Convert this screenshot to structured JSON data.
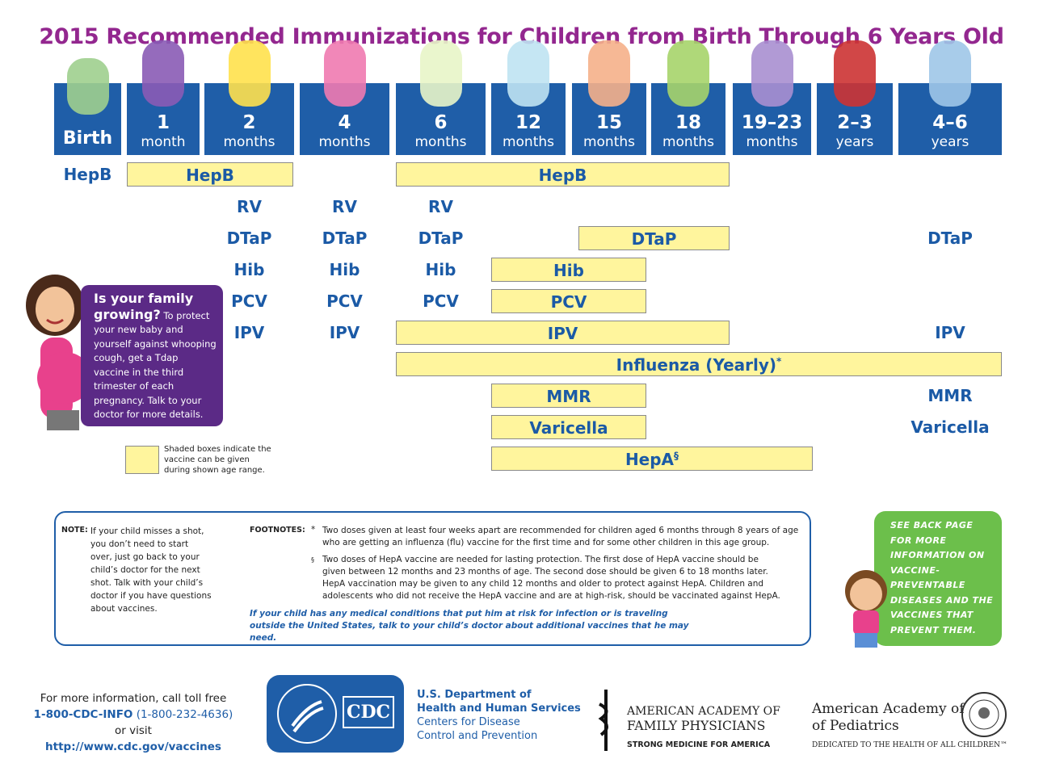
{
  "header": {
    "title": "2015 Recommended Immunizations for Children from Birth Through 6 Years Old"
  },
  "ages": [
    {
      "number": "Birth"
    },
    {
      "number": "1",
      "unit": "month"
    },
    {
      "number": "2",
      "unit": "months"
    },
    {
      "number": "4",
      "unit": "months"
    },
    {
      "number": "6",
      "unit": "months"
    },
    {
      "number": "12",
      "unit": "months"
    },
    {
      "number": "15",
      "unit": "months"
    },
    {
      "number": "18",
      "unit": "months"
    },
    {
      "number": "19–23",
      "unit": "months"
    },
    {
      "number": "2–3",
      "unit": "years"
    },
    {
      "number": "4–6",
      "unit": "years"
    }
  ],
  "rows": [
    {
      "cells": [
        {
          "text": "HepB"
        },
        {
          "text": "HepB"
        },
        {
          "text": "HepB"
        }
      ]
    },
    {
      "cells": [
        {
          "text": "RV"
        },
        {
          "text": "RV"
        },
        {
          "text": "RV"
        }
      ]
    },
    {
      "cells": [
        {
          "text": "DTaP"
        },
        {
          "text": "DTaP"
        },
        {
          "text": "DTaP"
        },
        {
          "text": "DTaP"
        },
        {
          "text": "DTaP"
        }
      ]
    },
    {
      "cells": [
        {
          "text": "Hib"
        },
        {
          "text": "Hib"
        },
        {
          "text": "Hib"
        },
        {
          "text": "Hib"
        }
      ]
    },
    {
      "cells": [
        {
          "text": "PCV"
        },
        {
          "text": "PCV"
        },
        {
          "text": "PCV"
        },
        {
          "text": "PCV"
        }
      ]
    },
    {
      "cells": [
        {
          "text": "IPV"
        },
        {
          "text": "IPV"
        },
        {
          "text": "IPV"
        },
        {
          "text": "IPV"
        }
      ]
    },
    {
      "cells": [
        {
          "text": "Influenza (Yearly)",
          "sup": "*"
        }
      ]
    },
    {
      "cells": [
        {
          "text": "MMR"
        },
        {
          "text": "MMR"
        }
      ]
    },
    {
      "cells": [
        {
          "text": "Varicella"
        },
        {
          "text": "Varicella"
        }
      ]
    },
    {
      "cells": [
        {
          "text": "HepA",
          "sup": "§"
        }
      ]
    }
  ],
  "sidebar": {
    "heading": "Is your family growing?",
    "text": "To protect your new baby and yourself against whooping cough, get a Tdap vaccine in the third trimester of each pregnancy. Talk to your doctor for more details."
  },
  "legend": {
    "text": "Shaded boxes indicate the vaccine can be given during shown age range."
  },
  "notes": {
    "note_label": "NOTE:",
    "note_text": "If your child misses a shot, you don’t need to start over, just go back to your child’s doctor for the next shot. Talk with your child’s doctor if you have questions about vaccines.",
    "footnotes_label": "FOOTNOTES:",
    "footnotes": [
      {
        "symbol": "*",
        "text": "Two doses given at least four weeks apart are recommended for children aged 6 months through 8 years of age who are getting an influenza (flu) vaccine for the first time and for some other children in this age group."
      },
      {
        "symbol": "§",
        "text": "Two doses of HepA vaccine are needed for lasting protection. The first dose of HepA vaccine should be given between 12 months and 23 months of age. The second dose should be given 6 to 18 months later. HepA vaccination may be given to any child 12 months and older to protect against HepA. Children and adolescents who did not receive the HepA vaccine and are at high-risk, should be vaccinated against HepA."
      }
    ],
    "closing": "If your child has any medical conditions that put him at risk for infection or is traveling outside the United States, talk to your child’s doctor about additional vaccines that he may need."
  },
  "callout": {
    "text": "See back page for more information on vaccine-preventable diseases and the vaccines that prevent them."
  },
  "footer": {
    "contact_line1": "For more information, call toll free",
    "phone": "1-800-CDC-INFO",
    "phone_digits": "(1-800-232-4636)",
    "or_visit": "or visit",
    "url": "http://www.cdc.gov/vaccines",
    "cdc_logo": "CDC",
    "hhs_line1": "U.S. Department of",
    "hhs_line2": "Health and Human Services",
    "cdc_line1": "Centers for Disease",
    "cdc_line2": "Control and Prevention",
    "aafp_line1": "AMERICAN ACADEMY OF",
    "aafp_line2": "FAMILY PHYSICIANS",
    "aafp_tagline": "STRONG MEDICINE FOR AMERICA",
    "aap_line1": "American Academy of",
    "aap_line2": "of Pediatrics",
    "aap_tagline": "DEDICATED TO THE HEALTH OF ALL CHILDREN™"
  }
}
